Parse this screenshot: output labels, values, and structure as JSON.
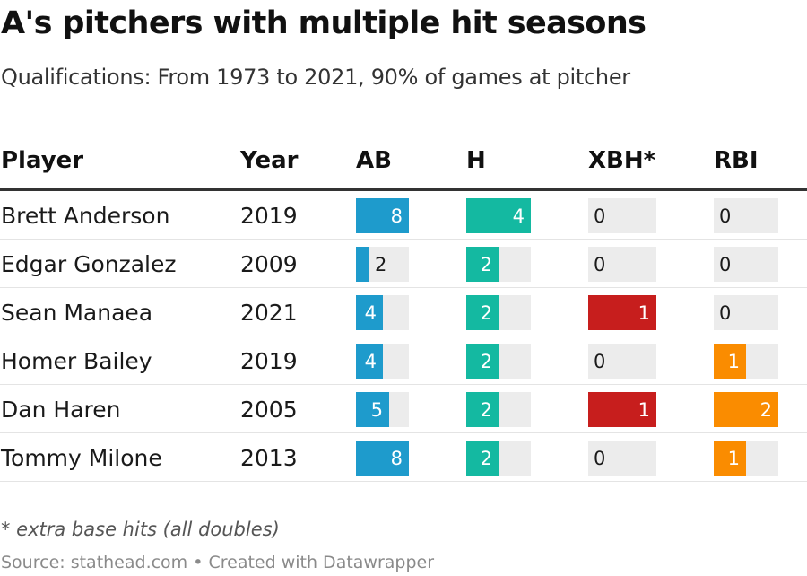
{
  "title": "A's pitchers with multiple hit seasons",
  "subtitle": "Qualifications: From 1973 to 2021, 90% of games at pitcher",
  "notes": "* extra base hits (all doubles)",
  "source": "Source: stathead.com • Created with Datawrapper",
  "colors": {
    "AB": "#1e9bcc",
    "H": "#14b9a1",
    "XBH": "#c71e1d",
    "RBI": "#fa8c00",
    "track": "#ececec"
  },
  "chart_data": {
    "type": "table",
    "columns": [
      "Player",
      "Year",
      "AB",
      "H",
      "XBH*",
      "RBI"
    ],
    "column_max": {
      "AB": 8,
      "H": 4,
      "XBH": 1,
      "RBI": 2
    },
    "rows": [
      {
        "player": "Brett Anderson",
        "year": "2019",
        "AB": 8,
        "H": 4,
        "XBH": 0,
        "RBI": 0
      },
      {
        "player": "Edgar Gonzalez",
        "year": "2009",
        "AB": 2,
        "H": 2,
        "XBH": 0,
        "RBI": 0
      },
      {
        "player": "Sean Manaea",
        "year": "2021",
        "AB": 4,
        "H": 2,
        "XBH": 1,
        "RBI": 0
      },
      {
        "player": "Homer Bailey",
        "year": "2019",
        "AB": 4,
        "H": 2,
        "XBH": 0,
        "RBI": 1
      },
      {
        "player": "Dan Haren",
        "year": "2005",
        "AB": 5,
        "H": 2,
        "XBH": 1,
        "RBI": 2
      },
      {
        "player": "Tommy Milone",
        "year": "2013",
        "AB": 8,
        "H": 2,
        "XBH": 0,
        "RBI": 1
      }
    ]
  }
}
